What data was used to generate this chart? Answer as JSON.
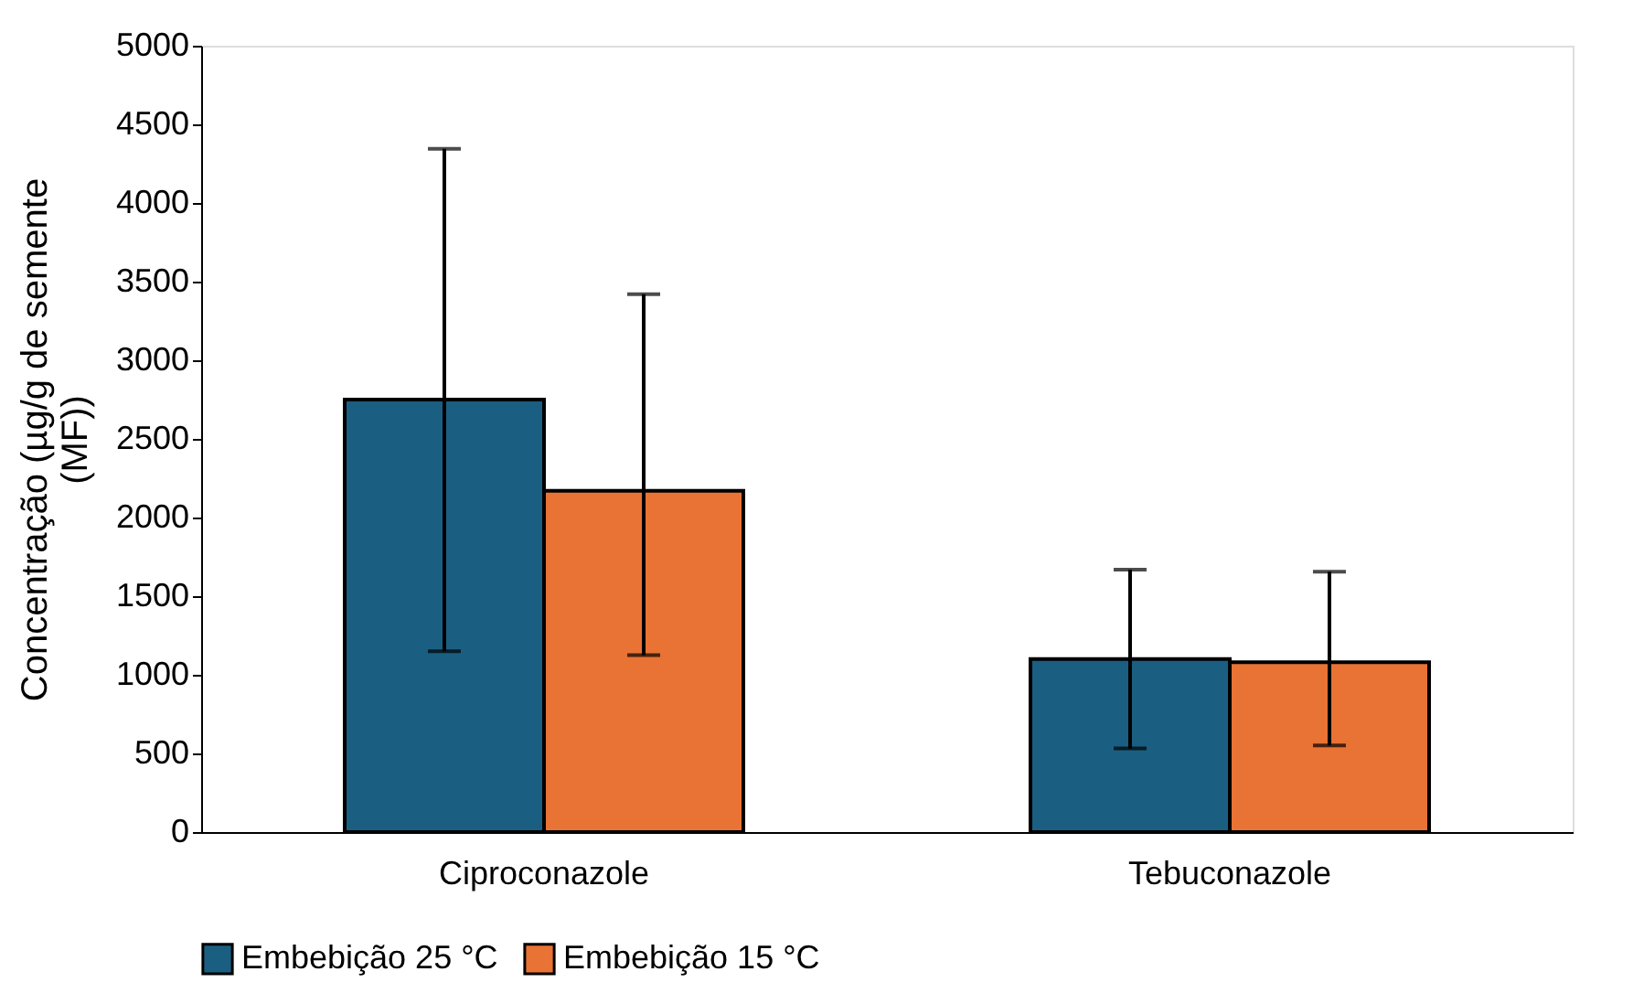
{
  "chart_data": {
    "type": "bar",
    "ylabel": "Concentração (µg/g de semente (MF))",
    "categories": [
      "Ciproconazole",
      "Tebuconazole"
    ],
    "series": [
      {
        "name": "Embebição 25 °C",
        "color": "#1a5f82",
        "values": [
          2750,
          1100
        ],
        "errors": [
          [
            1150,
            4345
          ],
          [
            532,
            1668
          ]
        ]
      },
      {
        "name": "Embebição 15 °C",
        "color": "#e97334",
        "values": [
          2170,
          1080
        ],
        "errors": [
          [
            1125,
            3420
          ],
          [
            551,
            1656
          ]
        ]
      }
    ],
    "ylim": [
      0,
      5000
    ],
    "yticks": [
      0,
      500,
      1000,
      1500,
      2000,
      2500,
      3000,
      3500,
      4000,
      4500,
      5000
    ],
    "grid": false,
    "legend": "bottom"
  }
}
